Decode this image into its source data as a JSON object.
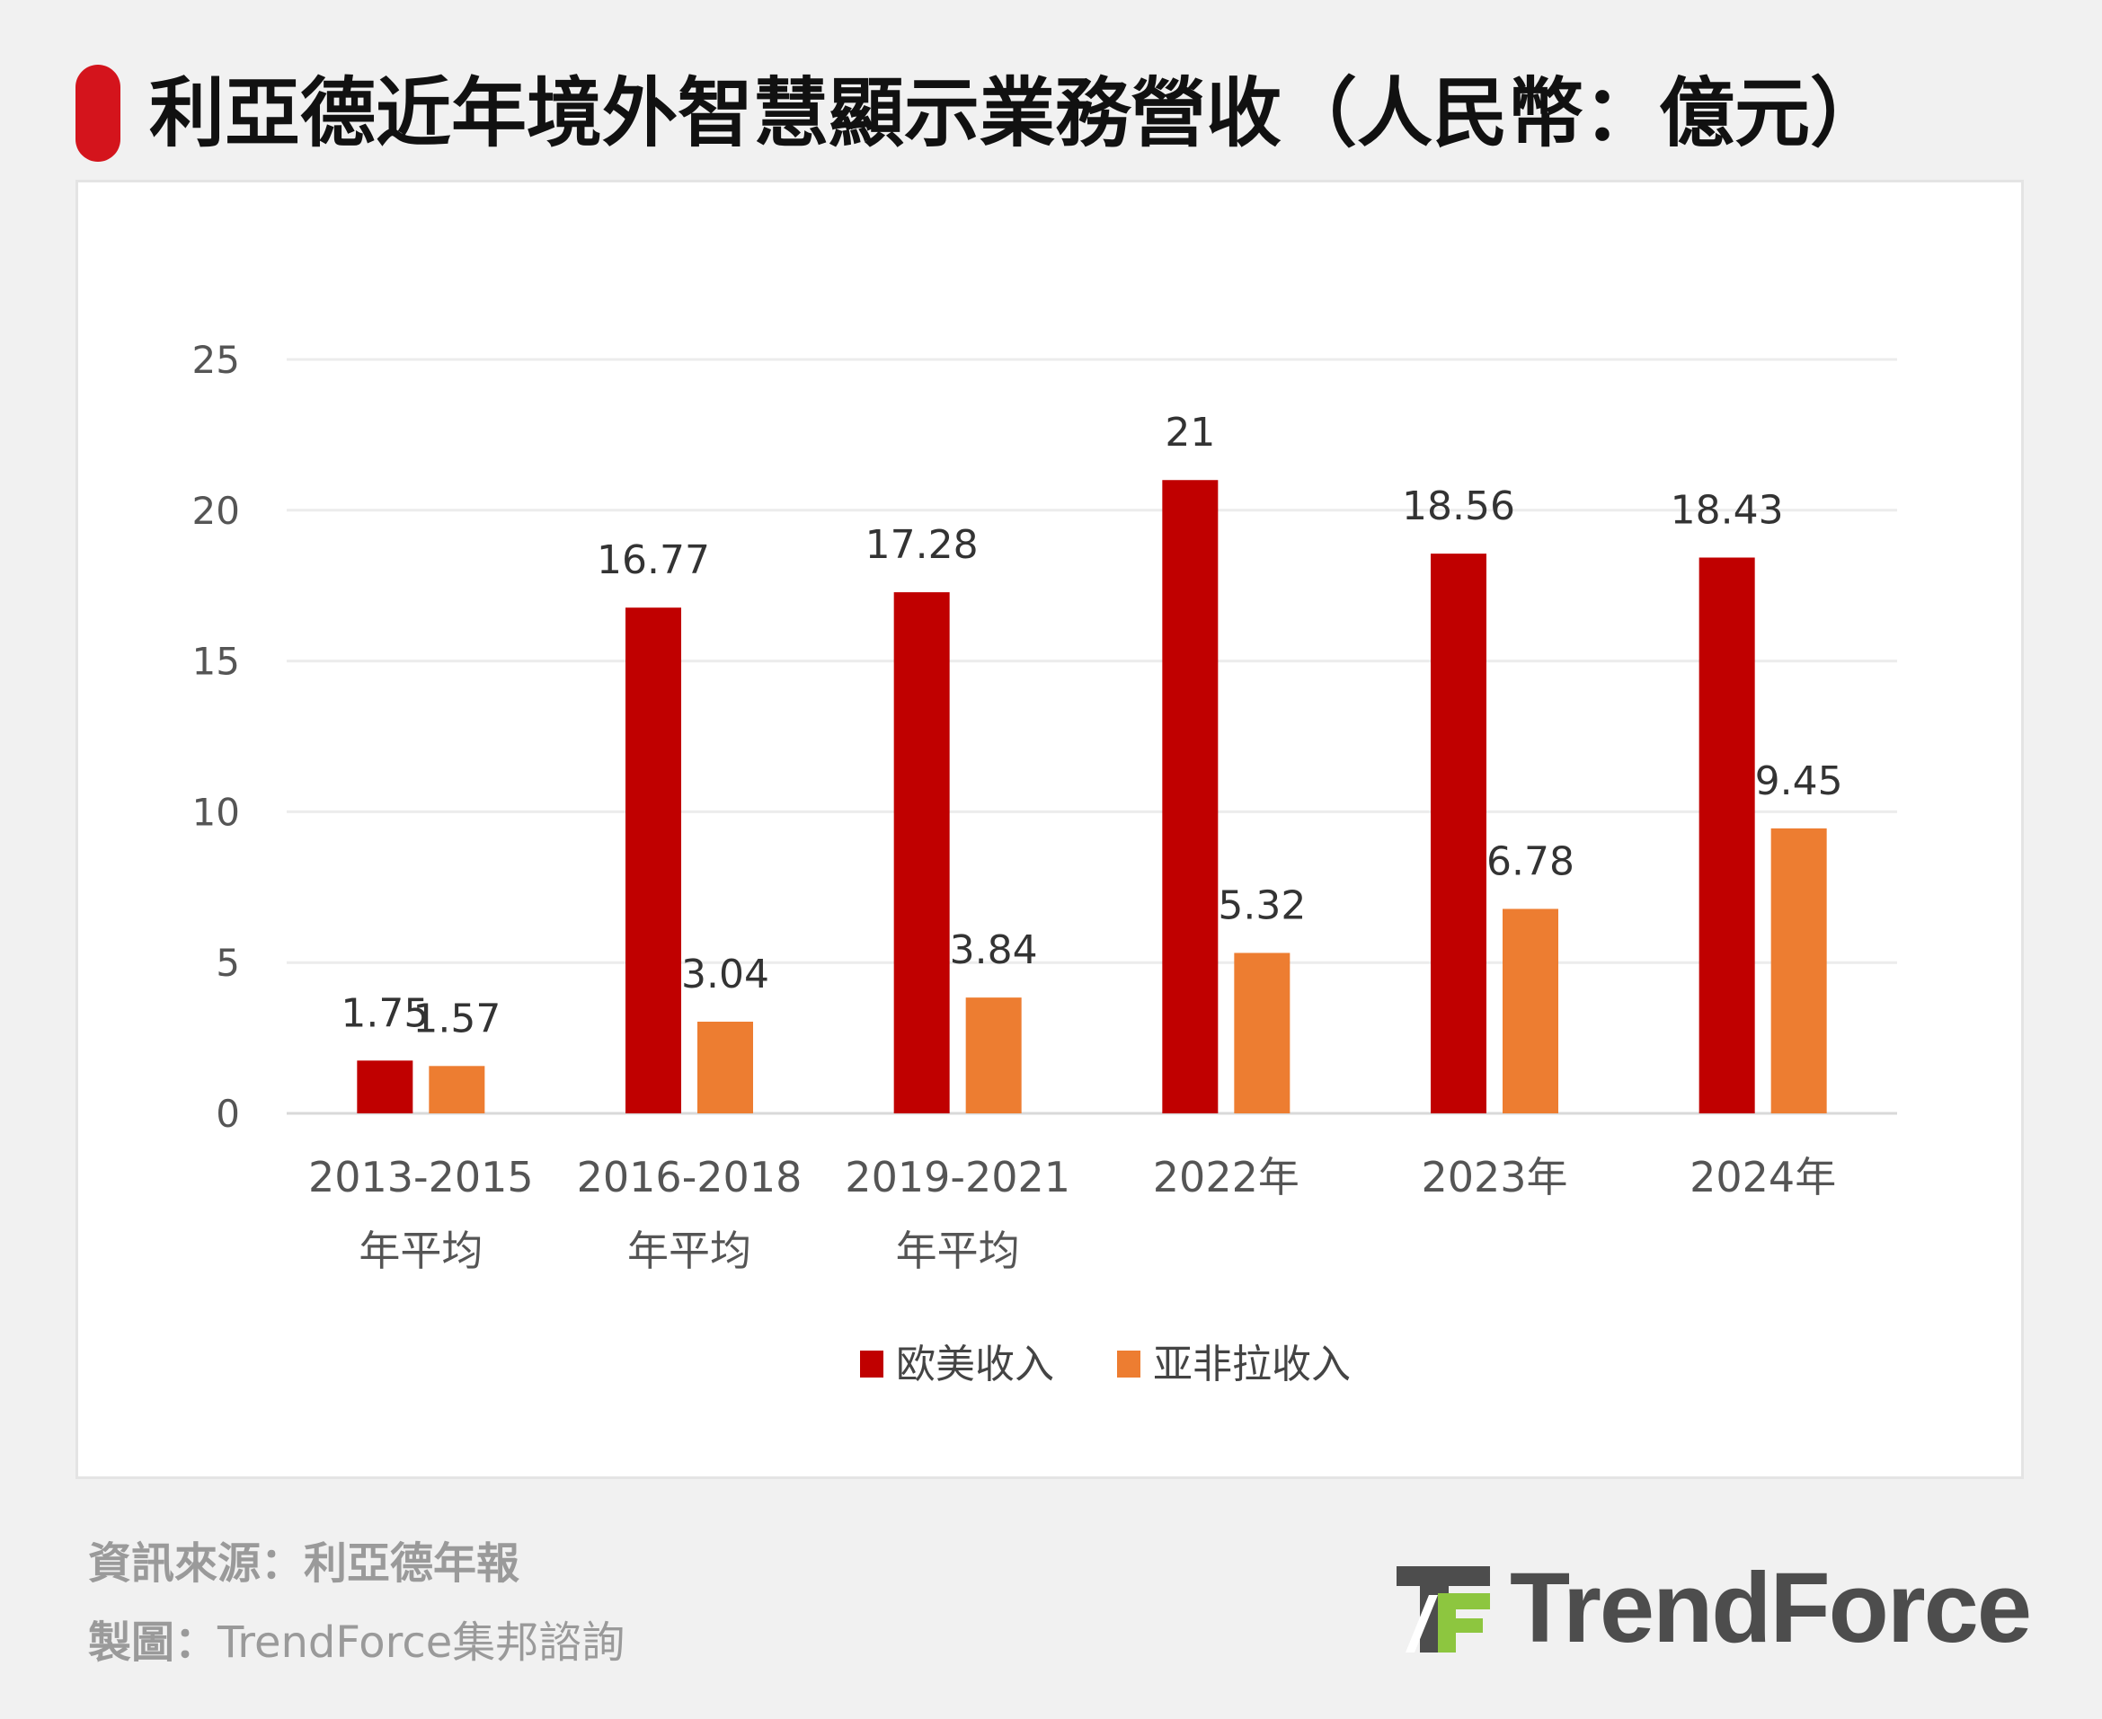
{
  "title": "利亞德近年境外智慧顯示業務營收（人民幣：億元）",
  "source": "資訊來源：利亞德年報",
  "maker_label": "製圖：",
  "maker_value": "TrendForce集邦諮詢",
  "logo_text": "TrendForce",
  "colors": {
    "accent": "#d4141c",
    "series1": "#c00000",
    "series2": "#ed7d31",
    "logo_green": "#8dc63f",
    "logo_gray": "#4d4d4d"
  },
  "chart_data": {
    "type": "bar",
    "title": "利亞德近年境外智慧顯示業務營收（人民幣：億元）",
    "categories": [
      [
        "2013-2015",
        "年平均"
      ],
      [
        "2016-2018",
        "年平均"
      ],
      [
        "2019-2021",
        "年平均"
      ],
      [
        "2022年"
      ],
      [
        "2023年"
      ],
      [
        "2024年"
      ]
    ],
    "series": [
      {
        "name": "欧美收入",
        "color": "#c00000",
        "values": [
          1.75,
          16.77,
          17.28,
          21,
          18.56,
          18.43
        ],
        "labels": [
          "1.75",
          "16.77",
          "17.28",
          "21",
          "18.56",
          "18.43"
        ]
      },
      {
        "name": "亚非拉收入",
        "color": "#ed7d31",
        "values": [
          1.57,
          3.04,
          3.84,
          5.32,
          6.78,
          9.45
        ],
        "labels": [
          "1.57",
          "3.04",
          "3.84",
          "5.32",
          "6.78",
          "9.45"
        ]
      }
    ],
    "yticks": [
      "0",
      "5",
      "10",
      "15",
      "20",
      "25"
    ],
    "ylim": [
      0,
      25
    ],
    "xlabel": "",
    "ylabel": "",
    "grid": true,
    "legend": "bottom"
  }
}
